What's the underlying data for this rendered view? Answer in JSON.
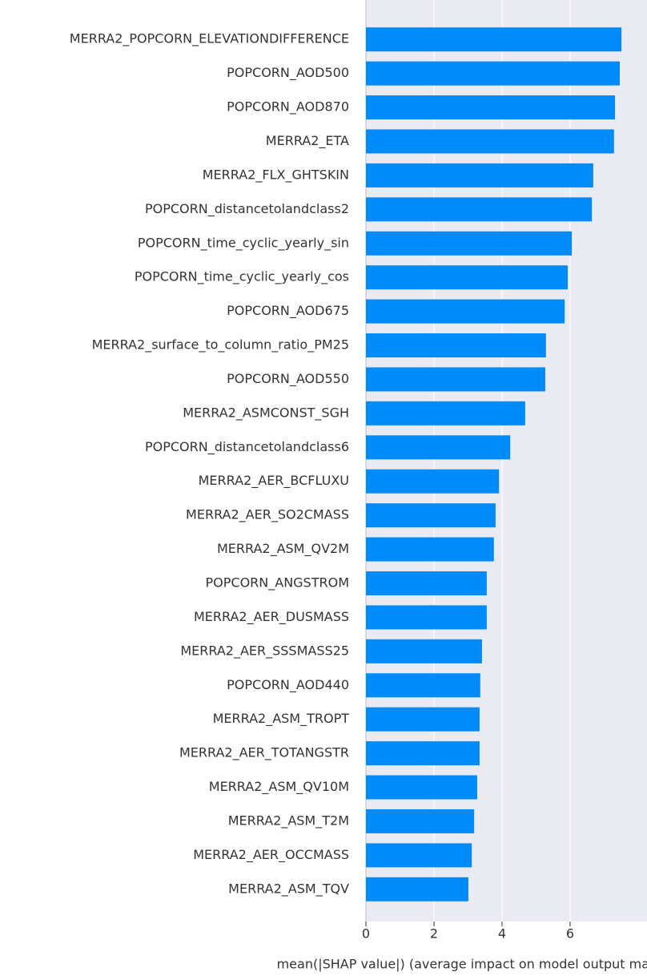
{
  "chart_data": {
    "type": "barh",
    "x_label": "mean(|SHAP value|) (average impact on model output magnitude)",
    "categories": [
      "MERRA2_POPCORN_ELEVATIONDIFFERENCE",
      "POPCORN_AOD500",
      "POPCORN_AOD870",
      "MERRA2_ETA",
      "MERRA2_FLX_GHTSKIN",
      "POPCORN_distancetolandclass2",
      "POPCORN_time_cyclic_yearly_sin",
      "POPCORN_time_cyclic_yearly_cos",
      "POPCORN_AOD675",
      "MERRA2_surface_to_column_ratio_PM25",
      "POPCORN_AOD550",
      "MERRA2_ASMCONST_SGH",
      "POPCORN_distancetolandclass6",
      "MERRA2_AER_BCFLUXU",
      "MERRA2_AER_SO2CMASS",
      "MERRA2_ASM_QV2M",
      "POPCORN_ANGSTROM",
      "MERRA2_AER_DUSMASS",
      "MERRA2_AER_SSSMASS25",
      "POPCORN_AOD440",
      "MERRA2_ASM_TROPT",
      "MERRA2_AER_TOTANGSTR",
      "MERRA2_ASM_QV10M",
      "MERRA2_ASM_T2M",
      "MERRA2_AER_OCCMASS",
      "MERRA2_ASM_TQV"
    ],
    "values": [
      7.51,
      7.46,
      7.32,
      7.29,
      6.68,
      6.64,
      6.05,
      5.93,
      5.84,
      5.29,
      5.27,
      4.68,
      4.24,
      3.91,
      3.81,
      3.76,
      3.55,
      3.55,
      3.41,
      3.36,
      3.34,
      3.34,
      3.27,
      3.18,
      3.11,
      3.01
    ],
    "color": "#008bfb",
    "xlim": [
      0,
      8.26
    ],
    "xticks": [
      0,
      2,
      4,
      6
    ],
    "grid": true
  }
}
